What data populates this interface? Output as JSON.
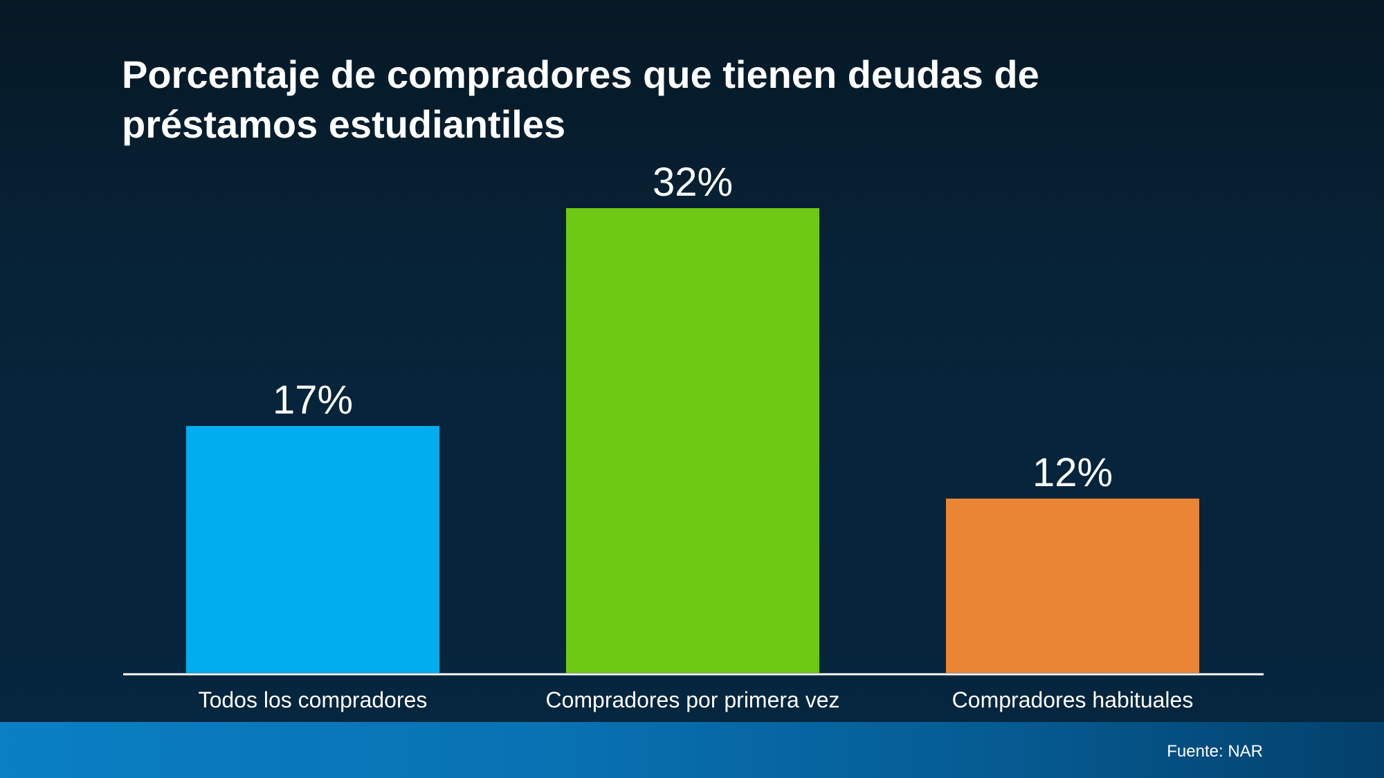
{
  "chart_data": {
    "type": "bar",
    "title": "Porcentaje de compradores que tienen deudas de préstamos estudiantiles",
    "categories": [
      "Todos los compradores",
      "Compradores por primera vez",
      "Compradores habituales"
    ],
    "values": [
      17,
      32,
      12
    ],
    "value_labels": [
      "17%",
      "32%",
      "12%"
    ],
    "colors": [
      "#00AEEF",
      "#6DC914",
      "#EA8536"
    ],
    "unit": "%",
    "ylim": [
      0,
      40
    ],
    "grid": false,
    "legend": "none"
  },
  "source": "Fuente: NAR",
  "colors": {
    "background_top": "#061824",
    "background_bottom": "#05263f",
    "footer_band": "#0a7fc4",
    "text": "#ffffff",
    "baseline": "#ffffff"
  }
}
